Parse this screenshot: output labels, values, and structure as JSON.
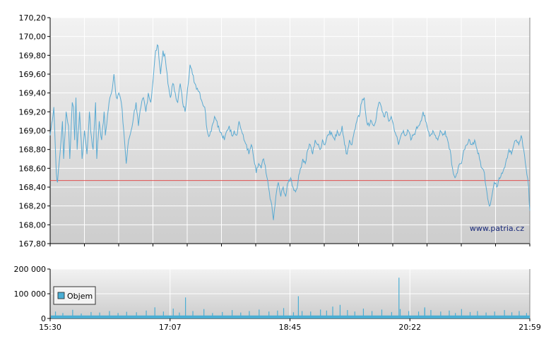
{
  "watermark": "www.patria.cz",
  "colors": {
    "price_line": "#5aaad2",
    "reference_line": "#e05050",
    "volume_bar": "#4aaed4",
    "plot_bg_top": "#f2f2f2",
    "plot_bg_bottom": "#cfcfcf",
    "grid": "#ffffff"
  },
  "chart_data": [
    {
      "type": "line",
      "series": [
        {
          "values": [
            [
              0,
              168.95
            ],
            [
              3,
              169.25
            ],
            [
              5,
              168.55
            ],
            [
              6,
              168.45
            ],
            [
              8,
              168.75
            ],
            [
              10,
              169.1
            ],
            [
              11,
              168.7
            ],
            [
              13,
              169.2
            ],
            [
              15,
              169.05
            ],
            [
              16,
              168.7
            ],
            [
              18,
              169.3
            ],
            [
              19,
              169.25
            ],
            [
              20,
              168.9
            ],
            [
              21,
              169.35
            ],
            [
              22,
              168.8
            ],
            [
              24,
              169.2
            ],
            [
              26,
              168.7
            ],
            [
              28,
              169.0
            ],
            [
              30,
              168.75
            ],
            [
              32,
              169.2
            ],
            [
              33,
              169.0
            ],
            [
              35,
              168.8
            ],
            [
              37,
              169.3
            ],
            [
              38,
              168.7
            ],
            [
              40,
              169.1
            ],
            [
              42,
              168.9
            ],
            [
              44,
              169.2
            ],
            [
              45,
              168.95
            ],
            [
              48,
              169.3
            ],
            [
              50,
              169.4
            ],
            [
              52,
              169.6
            ],
            [
              54,
              169.35
            ],
            [
              56,
              169.4
            ],
            [
              58,
              169.3
            ],
            [
              60,
              169.0
            ],
            [
              62,
              168.65
            ],
            [
              64,
              168.9
            ],
            [
              66,
              169.0
            ],
            [
              68,
              169.15
            ],
            [
              70,
              169.3
            ],
            [
              72,
              169.05
            ],
            [
              74,
              169.25
            ],
            [
              76,
              169.35
            ],
            [
              78,
              169.2
            ],
            [
              80,
              169.4
            ],
            [
              82,
              169.3
            ],
            [
              84,
              169.55
            ],
            [
              86,
              169.85
            ],
            [
              88,
              169.9
            ],
            [
              90,
              169.6
            ],
            [
              92,
              169.85
            ],
            [
              94,
              169.75
            ],
            [
              96,
              169.5
            ],
            [
              98,
              169.35
            ],
            [
              100,
              169.5
            ],
            [
              102,
              169.4
            ],
            [
              104,
              169.3
            ],
            [
              106,
              169.5
            ],
            [
              108,
              169.3
            ],
            [
              110,
              169.2
            ],
            [
              112,
              169.45
            ],
            [
              114,
              169.7
            ],
            [
              116,
              169.6
            ],
            [
              118,
              169.5
            ],
            [
              120,
              169.45
            ],
            [
              122,
              169.4
            ],
            [
              124,
              169.3
            ],
            [
              126,
              169.25
            ],
            [
              128,
              169.0
            ],
            [
              130,
              168.95
            ],
            [
              132,
              169.05
            ],
            [
              134,
              169.15
            ],
            [
              136,
              169.1
            ],
            [
              138,
              169.0
            ],
            [
              140,
              168.95
            ],
            [
              142,
              168.9
            ],
            [
              144,
              169.0
            ],
            [
              146,
              169.05
            ],
            [
              148,
              168.95
            ],
            [
              150,
              169.0
            ],
            [
              152,
              168.95
            ],
            [
              154,
              169.1
            ],
            [
              156,
              169.0
            ],
            [
              158,
              168.9
            ],
            [
              160,
              168.85
            ],
            [
              162,
              168.75
            ],
            [
              164,
              168.85
            ],
            [
              166,
              168.7
            ],
            [
              168,
              168.55
            ],
            [
              170,
              168.65
            ],
            [
              172,
              168.6
            ],
            [
              174,
              168.7
            ],
            [
              176,
              168.55
            ],
            [
              178,
              168.4
            ],
            [
              180,
              168.25
            ],
            [
              182,
              168.05
            ],
            [
              184,
              168.3
            ],
            [
              186,
              168.45
            ],
            [
              188,
              168.3
            ],
            [
              190,
              168.4
            ],
            [
              192,
              168.3
            ],
            [
              194,
              168.45
            ],
            [
              196,
              168.5
            ],
            [
              198,
              168.4
            ],
            [
              200,
              168.35
            ],
            [
              202,
              168.45
            ],
            [
              204,
              168.6
            ],
            [
              206,
              168.7
            ],
            [
              208,
              168.65
            ],
            [
              210,
              168.8
            ],
            [
              212,
              168.85
            ],
            [
              214,
              168.75
            ],
            [
              216,
              168.9
            ],
            [
              218,
              168.85
            ],
            [
              220,
              168.8
            ],
            [
              222,
              168.9
            ],
            [
              224,
              168.85
            ],
            [
              226,
              168.95
            ],
            [
              228,
              169.0
            ],
            [
              230,
              168.95
            ],
            [
              232,
              168.9
            ],
            [
              234,
              169.0
            ],
            [
              236,
              168.95
            ],
            [
              238,
              169.05
            ],
            [
              240,
              168.85
            ],
            [
              242,
              168.75
            ],
            [
              244,
              168.9
            ],
            [
              246,
              168.85
            ],
            [
              248,
              169.0
            ],
            [
              250,
              169.1
            ],
            [
              252,
              169.15
            ],
            [
              254,
              169.3
            ],
            [
              256,
              169.35
            ],
            [
              258,
              169.1
            ],
            [
              260,
              169.05
            ],
            [
              262,
              169.1
            ],
            [
              264,
              169.05
            ],
            [
              266,
              169.15
            ],
            [
              268,
              169.3
            ],
            [
              270,
              169.25
            ],
            [
              272,
              169.15
            ],
            [
              274,
              169.2
            ],
            [
              276,
              169.1
            ],
            [
              278,
              169.15
            ],
            [
              280,
              169.05
            ],
            [
              282,
              168.95
            ],
            [
              284,
              168.85
            ],
            [
              286,
              168.95
            ],
            [
              288,
              169.0
            ],
            [
              290,
              168.95
            ],
            [
              292,
              169.0
            ],
            [
              294,
              168.9
            ],
            [
              296,
              168.95
            ],
            [
              298,
              169.0
            ],
            [
              300,
              169.05
            ],
            [
              302,
              169.1
            ],
            [
              304,
              169.2
            ],
            [
              306,
              169.1
            ],
            [
              308,
              169.0
            ],
            [
              310,
              168.95
            ],
            [
              312,
              169.0
            ],
            [
              314,
              168.95
            ],
            [
              316,
              168.9
            ],
            [
              318,
              169.0
            ],
            [
              320,
              168.95
            ],
            [
              322,
              169.0
            ],
            [
              324,
              168.9
            ],
            [
              326,
              168.8
            ],
            [
              328,
              168.6
            ],
            [
              330,
              168.5
            ],
            [
              332,
              168.55
            ],
            [
              334,
              168.65
            ],
            [
              336,
              168.7
            ],
            [
              338,
              168.8
            ],
            [
              340,
              168.85
            ],
            [
              342,
              168.9
            ],
            [
              344,
              168.85
            ],
            [
              346,
              168.9
            ],
            [
              348,
              168.8
            ],
            [
              350,
              168.7
            ],
            [
              352,
              168.6
            ],
            [
              354,
              168.55
            ],
            [
              356,
              168.35
            ],
            [
              358,
              168.2
            ],
            [
              360,
              168.3
            ],
            [
              362,
              168.45
            ],
            [
              364,
              168.4
            ],
            [
              366,
              168.5
            ],
            [
              368,
              168.55
            ],
            [
              370,
              168.6
            ],
            [
              372,
              168.7
            ],
            [
              374,
              168.8
            ],
            [
              376,
              168.75
            ],
            [
              378,
              168.85
            ],
            [
              380,
              168.9
            ],
            [
              382,
              168.85
            ],
            [
              384,
              168.95
            ],
            [
              386,
              168.8
            ],
            [
              388,
              168.6
            ],
            [
              390,
              168.4
            ],
            [
              391,
              168.15
            ]
          ]
        }
      ],
      "reference_value": 168.47,
      "ylim": [
        167.8,
        170.2
      ],
      "yticks": [
        "167,80",
        "168,00",
        "168,20",
        "168,40",
        "168,60",
        "168,80",
        "169,00",
        "169,20",
        "169,40",
        "169,60",
        "169,80",
        "170,00",
        "170,20"
      ],
      "xticks": [
        "15:30",
        "17:07",
        "18:45",
        "20:22",
        "21:59"
      ],
      "grid": true
    },
    {
      "type": "bar",
      "legend": "Objem",
      "ylim": [
        0,
        200000
      ],
      "yticks": [
        "0",
        "100 000",
        "200 000"
      ],
      "xticks": [
        "15:30",
        "17:07",
        "18:45",
        "20:22",
        "21:59"
      ],
      "base_value": 12000,
      "spikes": [
        [
          4,
          28000
        ],
        [
          10,
          22000
        ],
        [
          18,
          35000
        ],
        [
          25,
          20000
        ],
        [
          33,
          26000
        ],
        [
          40,
          24000
        ],
        [
          48,
          30000
        ],
        [
          55,
          22000
        ],
        [
          62,
          27000
        ],
        [
          70,
          25000
        ],
        [
          78,
          32000
        ],
        [
          85,
          45000
        ],
        [
          92,
          28000
        ],
        [
          100,
          40000
        ],
        [
          105,
          24000
        ],
        [
          110,
          85000
        ],
        [
          116,
          30000
        ],
        [
          125,
          38000
        ],
        [
          132,
          22000
        ],
        [
          140,
          26000
        ],
        [
          148,
          34000
        ],
        [
          155,
          24000
        ],
        [
          162,
          30000
        ],
        [
          170,
          36000
        ],
        [
          178,
          28000
        ],
        [
          185,
          32000
        ],
        [
          190,
          42000
        ],
        [
          198,
          25000
        ],
        [
          205,
          30000
        ],
        [
          212,
          28000
        ],
        [
          220,
          36000
        ],
        [
          225,
          32000
        ],
        [
          230,
          48000
        ],
        [
          236,
          55000
        ],
        [
          242,
          34000
        ],
        [
          248,
          28000
        ],
        [
          255,
          40000
        ],
        [
          262,
          30000
        ],
        [
          270,
          36000
        ],
        [
          278,
          26000
        ],
        [
          285,
          38000
        ],
        [
          292,
          30000
        ],
        [
          300,
          28000
        ],
        [
          305,
          45000
        ],
        [
          310,
          34000
        ],
        [
          318,
          28000
        ],
        [
          325,
          32000
        ],
        [
          330,
          22000
        ],
        [
          335,
          38000
        ],
        [
          342,
          26000
        ],
        [
          348,
          30000
        ],
        [
          355,
          24000
        ],
        [
          362,
          28000
        ],
        [
          370,
          34000
        ],
        [
          376,
          25000
        ],
        [
          382,
          30000
        ],
        [
          388,
          22000
        ]
      ],
      "tall_spikes": [
        [
          202,
          90000
        ],
        [
          284,
          165000
        ],
        [
          305,
          40000
        ]
      ]
    }
  ]
}
